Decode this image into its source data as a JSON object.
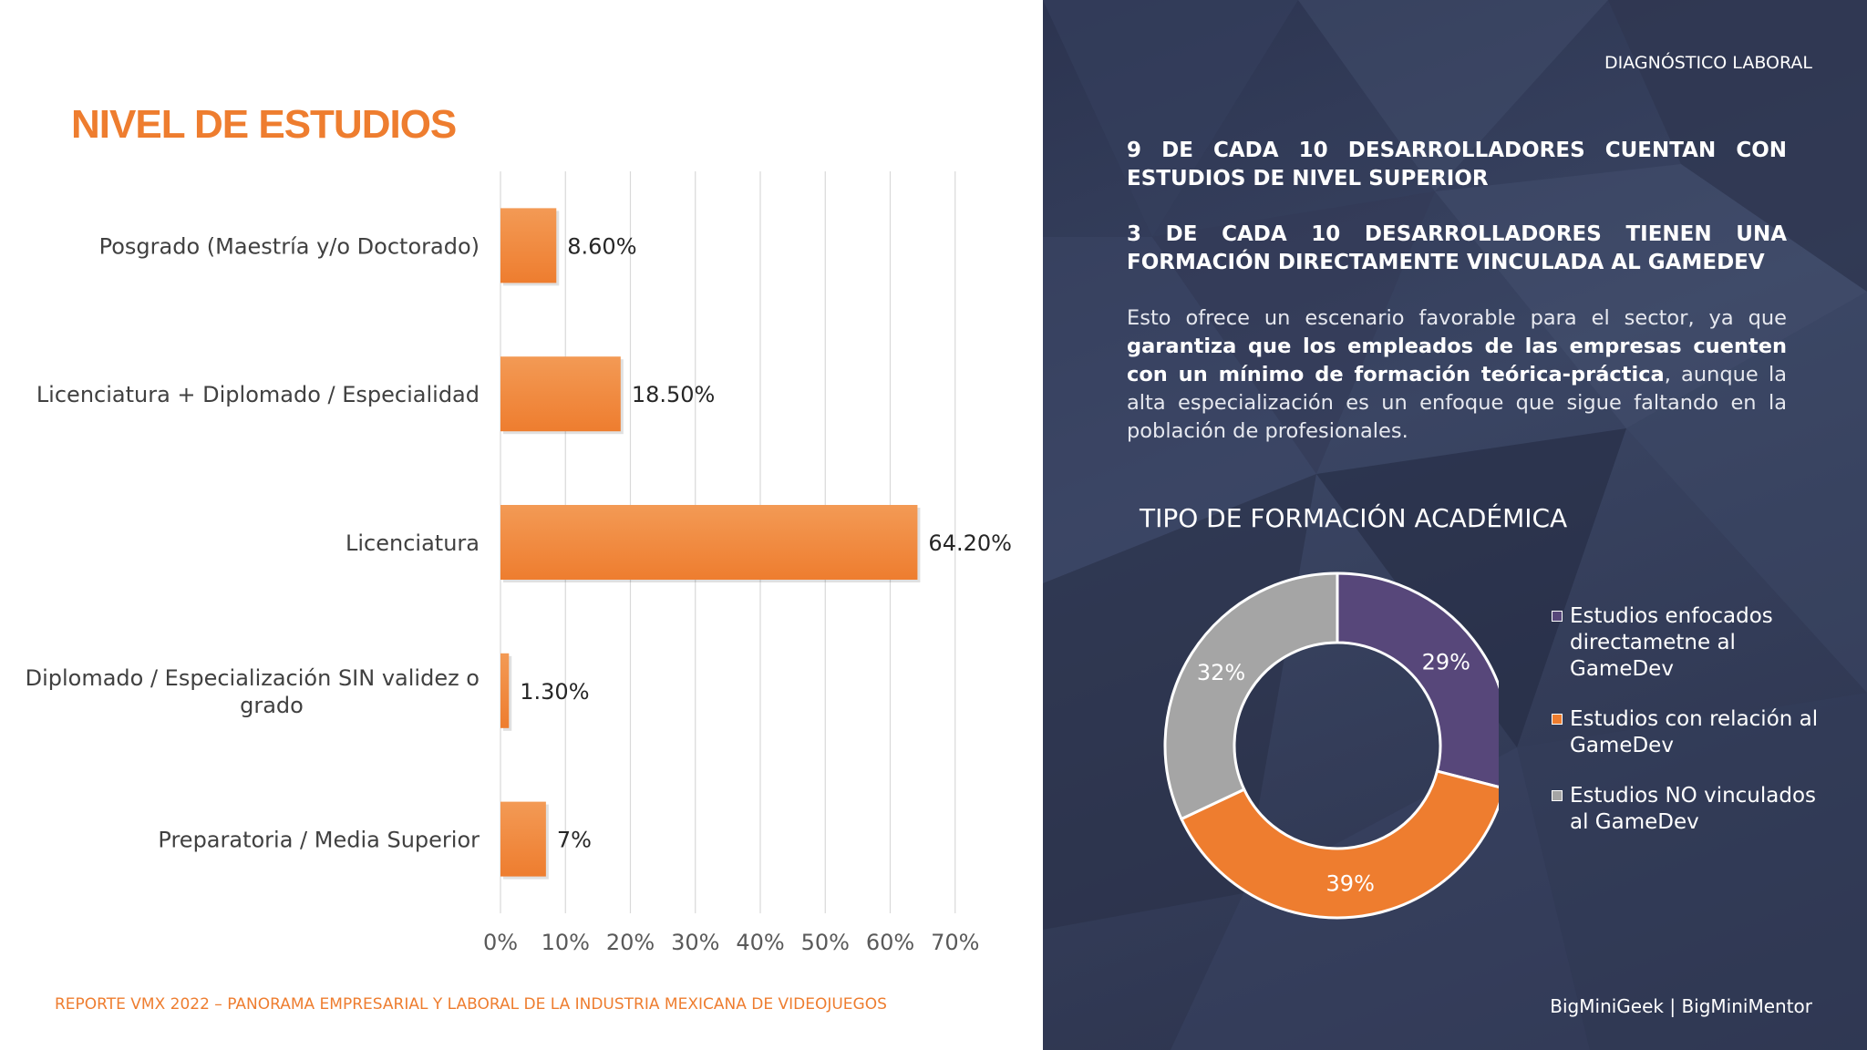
{
  "page": {
    "title": "NIVEL DE ESTUDIOS",
    "footer": "REPORTE VMX 2022 – PANORAMA EMPRESARIAL Y LABORAL DE LA INDUSTRIA MEXICANA DE VIDEOJUEGOS",
    "section_label": "DIAGNÓSTICO LABORAL",
    "headline_1": "9 DE CADA 10 DESARROLLADORES CUENTAN CON ESTUDIOS DE NIVEL SUPERIOR",
    "headline_2": "3 DE CADA 10 DESARROLLADORES TIENEN UNA FORMACIÓN DIRECTAMENTE VINCULADA AL GAMEDEV",
    "body_intro": "Esto ofrece un escenario favorable para el sector, ya que ",
    "body_bold": "garantiza que los empleados de las empresas cuenten con un mínimo de formación teórica-práctica",
    "body_rest": ", aunque la alta especialización es un enfoque que sigue faltando en la población de profesionales.",
    "credits": "BigMiniGeek  |  BigMiniMentor",
    "colors": {
      "accent": "#ee7d2f",
      "panel": "#2c3450",
      "purple": "#57477a",
      "gray": "#a5a5a5"
    }
  },
  "chart_data": [
    {
      "type": "bar",
      "orientation": "horizontal",
      "categories": [
        "Posgrado (Maestría y/o Doctorado)",
        "Licenciatura + Diplomado / Especialidad",
        "Licenciatura",
        "Diplomado / Especialización SIN validez o grado",
        "Preparatoria / Media Superior"
      ],
      "category_lines": [
        [
          "Posgrado (Maestría y/o Doctorado)"
        ],
        [
          "Licenciatura + Diplomado / Especialidad"
        ],
        [
          "Licenciatura"
        ],
        [
          "Diplomado / Especialización SIN validez o",
          "grado"
        ],
        [
          "Preparatoria / Media Superior"
        ]
      ],
      "values": [
        8.6,
        18.5,
        64.2,
        1.3,
        7
      ],
      "data_labels": [
        "8.60%",
        "18.50%",
        "64.20%",
        "1.30%",
        "7%"
      ],
      "x_ticks": [
        0,
        10,
        20,
        30,
        40,
        50,
        60,
        70
      ],
      "x_tick_labels": [
        "0%",
        "10%",
        "20%",
        "30%",
        "40%",
        "50%",
        "60%",
        "70%"
      ],
      "xlim": [
        0,
        70
      ],
      "grid": true,
      "bar_color": "#ee7d2f"
    },
    {
      "type": "pie",
      "variant": "donut",
      "title": "TIPO DE FORMACIÓN ACADÉMICA",
      "slices": [
        {
          "label": "Estudios enfocados directametne al GameDev",
          "value": 29,
          "data_label": "29%",
          "color": "#57477a"
        },
        {
          "label": "Estudios con relación al GameDev",
          "value": 39,
          "data_label": "39%",
          "color": "#ee7d2f"
        },
        {
          "label": "Estudios NO vinculados al GameDev",
          "value": 32,
          "data_label": "32%",
          "color": "#a5a5a5"
        }
      ],
      "legend": [
        {
          "label": "Estudios enfocados directametne al GameDev",
          "color": "#57477a"
        },
        {
          "label": "Estudios con relación al GameDev",
          "color": "#ee7d2f"
        },
        {
          "label": "Estudios NO vinculados al GameDev",
          "color": "#a5a5a5"
        }
      ],
      "legend_position": "right"
    }
  ]
}
